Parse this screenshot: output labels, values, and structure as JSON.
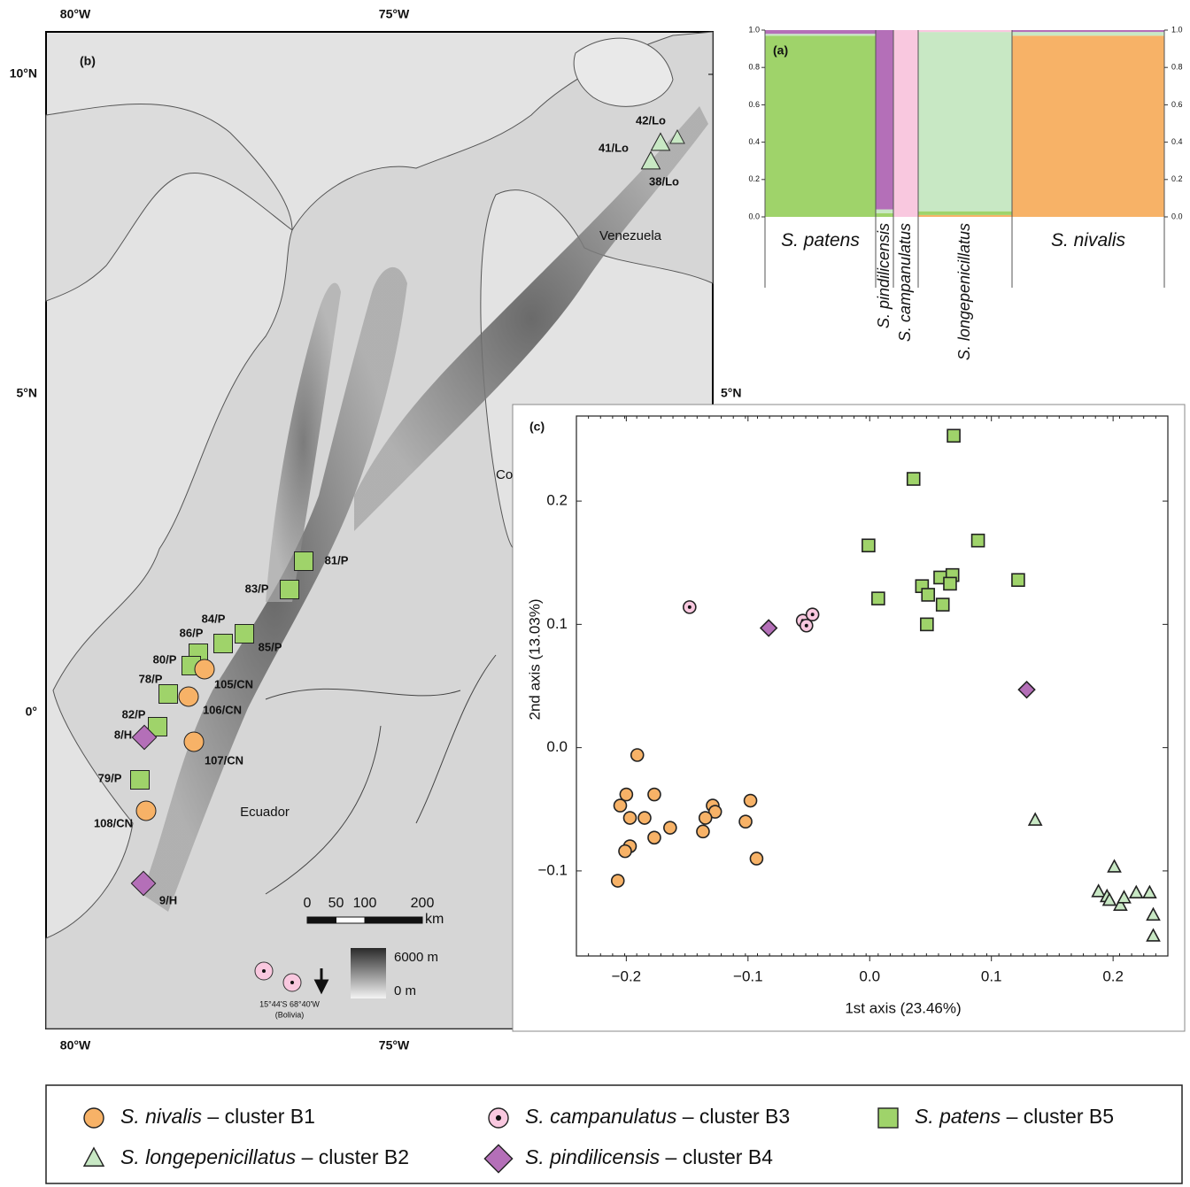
{
  "map": {
    "panel_label": "(b)",
    "top_lon_labels": [
      "80°W",
      "75°W"
    ],
    "bottom_lon_labels": [
      "80°W",
      "75°W"
    ],
    "lat_labels": [
      "10°N",
      "5°N",
      "0°"
    ],
    "right_lat_label": "5°N",
    "countries": [
      "Venezuela",
      "Ecuador",
      "Co"
    ],
    "sites": [
      {
        "label": "42/Lo",
        "marker": "triangle"
      },
      {
        "label": "41/Lo",
        "marker": "triangle"
      },
      {
        "label": "38/Lo",
        "marker": "triangle"
      },
      {
        "label": "81/P",
        "marker": "square"
      },
      {
        "label": "83/P",
        "marker": "square"
      },
      {
        "label": "85/P",
        "marker": "square"
      },
      {
        "label": "84/P",
        "marker": "square"
      },
      {
        "label": "86/P",
        "marker": "square"
      },
      {
        "label": "80/P",
        "marker": "square"
      },
      {
        "label": "105/CN",
        "marker": "circle"
      },
      {
        "label": "78/P",
        "marker": "square"
      },
      {
        "label": "106/CN",
        "marker": "circle"
      },
      {
        "label": "82/P",
        "marker": "square"
      },
      {
        "label": "8/H",
        "marker": "diamond"
      },
      {
        "label": "107/CN",
        "marker": "circle"
      },
      {
        "label": "79/P",
        "marker": "square"
      },
      {
        "label": "108/CN",
        "marker": "circle"
      },
      {
        "label": "9/H",
        "marker": "diamond"
      }
    ],
    "scale_bar": {
      "ticks": [
        0,
        50,
        100,
        200
      ],
      "unit": "km"
    },
    "elevation": {
      "max": "6000 m",
      "min": "0 m"
    },
    "outlier_note": [
      "15°44'S  68°40'W",
      "(Bolivia)"
    ]
  },
  "chart_data": [
    {
      "type": "stacked_bar",
      "panel_label": "(a)",
      "categories": [
        "S. patens",
        "S. pindilicensis",
        "S. campanulatus",
        "S. longepenicillatus",
        "S. nivalis"
      ],
      "series": [
        {
          "color": "#f7b267",
          "values": [
            0.0,
            0.0,
            0.0,
            0.01,
            0.97
          ]
        },
        {
          "color": "#9fd36a",
          "values": [
            0.97,
            0.02,
            0.0,
            0.02,
            0.0
          ]
        },
        {
          "color": "#c8e8c4",
          "values": [
            0.01,
            0.02,
            0.0,
            0.96,
            0.02
          ]
        },
        {
          "color": "#f9c8df",
          "values": [
            0.0,
            0.0,
            1.0,
            0.01,
            0.0
          ]
        },
        {
          "color": "#b46fb8",
          "values": [
            0.02,
            0.96,
            0.0,
            0.0,
            0.01
          ]
        }
      ],
      "ylim": [
        0,
        1
      ],
      "yticks": [
        {
          "value": 0,
          "label": "0.0"
        },
        0.2,
        0.4,
        0.6,
        0.8,
        {
          "value": 1,
          "label": "1.0"
        }
      ]
    },
    {
      "type": "scatter",
      "panel_label": "(c)",
      "x_label": "1st axis (23.46%)",
      "y_label": "2nd axis (13.03%)",
      "xlim": [
        -0.241,
        0.245
      ],
      "ylim": [
        -0.169,
        0.269
      ],
      "xticks": [
        {
          "value": -0.2,
          "label": "−0.2"
        },
        {
          "value": -0.1,
          "label": "−0.1"
        },
        {
          "value": 0,
          "label": "0.0"
        },
        0.1,
        0.2
      ],
      "yticks": [
        {
          "value": -0.1,
          "label": "−0.1"
        },
        {
          "value": 0,
          "label": "0.0"
        },
        0.1,
        0.2
      ],
      "series": [
        {
          "name": "S. nivalis – cluster B1",
          "marker": "circle",
          "color": "#f7b267",
          "x": [
            -0.191,
            -0.2,
            -0.205,
            -0.197,
            -0.177,
            -0.185,
            -0.197,
            -0.201,
            -0.177,
            -0.164,
            -0.207,
            -0.129,
            -0.127,
            -0.135,
            -0.137,
            -0.098,
            -0.102,
            -0.093
          ],
          "y": [
            -0.006,
            -0.038,
            -0.047,
            -0.057,
            -0.038,
            -0.057,
            -0.08,
            -0.084,
            -0.073,
            -0.065,
            -0.108,
            -0.047,
            -0.052,
            -0.057,
            -0.068,
            -0.043,
            -0.06,
            -0.09
          ]
        },
        {
          "name": "S. campanulatus – cluster B3",
          "marker": "dotcircle",
          "color": "#f9c8df",
          "x": [
            -0.148,
            -0.055,
            -0.047,
            -0.052
          ],
          "y": [
            0.114,
            0.103,
            0.108,
            0.099
          ]
        },
        {
          "name": "S. patens – cluster B5",
          "marker": "square",
          "color": "#9fd36a",
          "x": [
            0.069,
            0.036,
            -0.001,
            0.089,
            0.007,
            0.043,
            0.048,
            0.058,
            0.068,
            0.066,
            0.06,
            0.047,
            0.122
          ],
          "y": [
            0.253,
            0.218,
            0.164,
            0.168,
            0.121,
            0.131,
            0.124,
            0.138,
            0.14,
            0.133,
            0.116,
            0.1,
            0.136
          ]
        },
        {
          "name": "S. longepenicillatus – cluster B2",
          "marker": "triangle",
          "color": "#c8e8c4",
          "x": [
            0.136,
            0.201,
            0.188,
            0.195,
            0.197,
            0.206,
            0.209,
            0.219,
            0.23,
            0.233,
            0.233
          ],
          "y": [
            -0.059,
            -0.097,
            -0.117,
            -0.121,
            -0.124,
            -0.128,
            -0.122,
            -0.118,
            -0.118,
            -0.136,
            -0.153
          ]
        },
        {
          "name": "S. pindilicensis – cluster B4",
          "marker": "diamond",
          "color": "#b46fb8",
          "x": [
            -0.083,
            0.129
          ],
          "y": [
            0.097,
            0.047
          ]
        }
      ]
    }
  ]
}
